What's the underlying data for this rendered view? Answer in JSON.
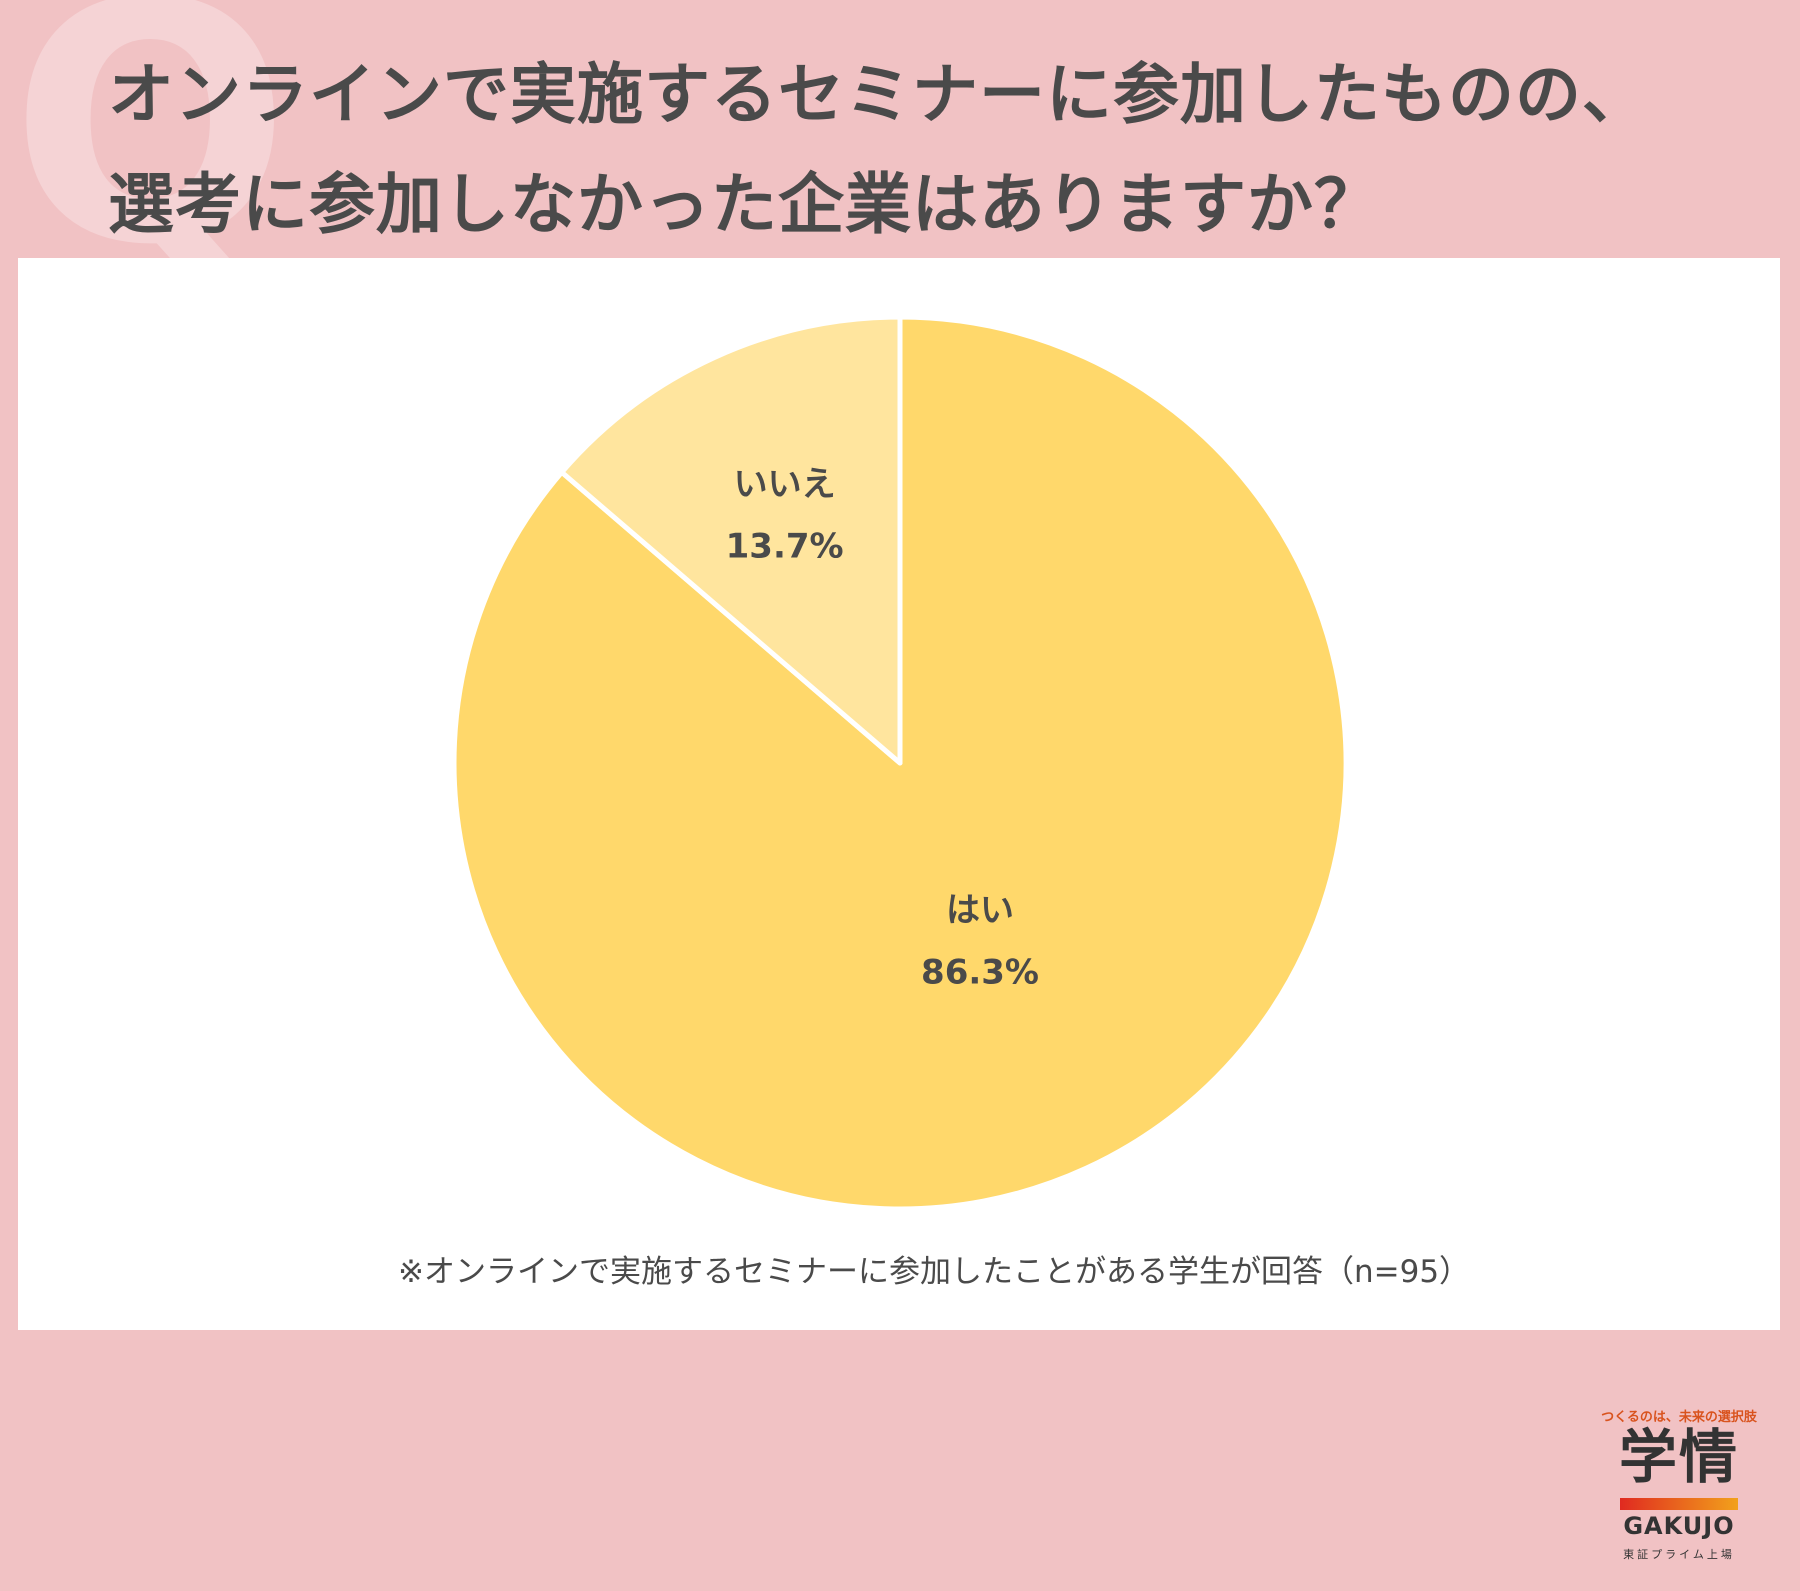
{
  "header": {
    "q_mark": "Q",
    "title_line1": "オンラインで実施するセミナーに参加したものの、",
    "title_line2": "選考に参加しなかった企業はありますか？"
  },
  "chart_data": {
    "type": "pie",
    "slices": [
      {
        "label": "はい",
        "value": 86.3,
        "display": "86.3%",
        "color": "#ffd86b"
      },
      {
        "label": "いいえ",
        "value": 13.7,
        "display": "13.7%",
        "color": "#ffe59e"
      }
    ],
    "start": "12 o'clock",
    "direction": "clockwise",
    "slice_border_color": "#ffffff"
  },
  "footnote": "※オンラインで実施するセミナーに参加したことがある学生が回答（n=95）",
  "logo": {
    "tagline": "つくるのは、未来の選択肢",
    "name": "学情",
    "latin": "GAKUJO",
    "sub": "東証プライム上場"
  },
  "colors": {
    "background": "#f1c2c4",
    "title": "#4a4a4a",
    "panel": "#ffffff"
  }
}
